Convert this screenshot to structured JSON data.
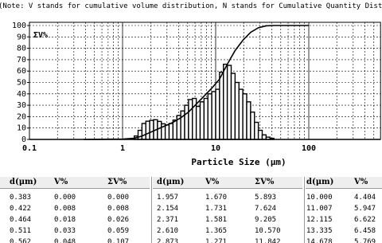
{
  "note": "(Note: V stands for cumulative volume distribution, N stands for Cumulative Quantity Distri",
  "chart_data": {
    "type": "histogram",
    "title": "ΣV%",
    "x_label": "Particle Size (μm)",
    "log_x": true,
    "grid": true,
    "color": "#000000",
    "xlim": [
      0.1,
      590
    ],
    "xticks": [
      0.1,
      1,
      10,
      100
    ],
    "xminorticks": [
      0.2,
      0.3,
      0.4,
      0.5,
      0.6,
      0.7,
      0.8,
      0.9,
      2,
      3,
      4,
      5,
      6,
      7,
      8,
      9,
      20,
      30,
      40,
      50,
      60,
      70,
      80,
      90,
      200,
      300,
      400,
      500
    ],
    "ylim": [
      0,
      100
    ],
    "yticks": [
      0,
      10,
      20,
      30,
      40,
      50,
      60,
      70,
      80,
      90,
      100
    ],
    "bins": [
      1.334,
      1.468,
      1.616,
      1.778,
      1.957,
      2.154,
      2.371,
      2.61,
      2.873,
      3.162,
      3.481,
      3.831,
      4.217,
      4.642,
      5.109,
      5.623,
      6.19,
      6.813,
      7.499,
      8.254,
      9.085,
      10.0,
      11.007,
      12.115,
      13.335,
      14.678,
      16.156,
      17.783,
      19.573,
      21.544,
      23.714,
      26.102,
      28.73,
      31.623,
      34.807,
      38.312,
      42.17
    ],
    "values": [
      3,
      8,
      14,
      16,
      16.7,
      17.3,
      15.8,
      13.7,
      12.7,
      14,
      17,
      21,
      25,
      30,
      35,
      36,
      29,
      33,
      36,
      40,
      42,
      44,
      59,
      66,
      65,
      58,
      50,
      44,
      40,
      33,
      24,
      15,
      8,
      4,
      2,
      1
    ],
    "curve": {
      "type": "line",
      "color": "#000000",
      "x": [
        0.383,
        1.0,
        1.334,
        1.616,
        1.957,
        2.371,
        2.873,
        3.481,
        4.217,
        5.109,
        6.19,
        7.499,
        9.085,
        11.007,
        13.335,
        16.156,
        19.573,
        23.714,
        28.73,
        34.807,
        42.17,
        60,
        100
      ],
      "values": [
        0,
        0.3,
        1,
        3,
        6,
        9,
        12,
        15,
        19,
        24,
        31,
        38,
        45,
        53,
        66,
        78,
        87,
        94,
        98,
        99.7,
        100,
        100,
        100
      ]
    }
  },
  "table": {
    "header": [
      "d(μm)",
      "V%",
      "ΣV%",
      "d(μm)",
      "V%",
      "ΣV%",
      "d(μm)",
      "V%"
    ],
    "rows": [
      [
        "0.383",
        "0.000",
        "0.000",
        "1.957",
        "1.670",
        "5.893",
        "10.000",
        "4.404"
      ],
      [
        "0.422",
        "0.008",
        "0.008",
        "2.154",
        "1.731",
        "7.624",
        "11.007",
        "5.947"
      ],
      [
        "0.464",
        "0.018",
        "0.026",
        "2.371",
        "1.581",
        "9.205",
        "12.115",
        "6.622"
      ],
      [
        "0.511",
        "0.033",
        "0.059",
        "2.610",
        "1.365",
        "10.570",
        "13.335",
        "6.458"
      ],
      [
        "0.562",
        "0.048",
        "0.107",
        "2.873",
        "1.271",
        "11.842",
        "14.678",
        "5.769"
      ]
    ]
  }
}
